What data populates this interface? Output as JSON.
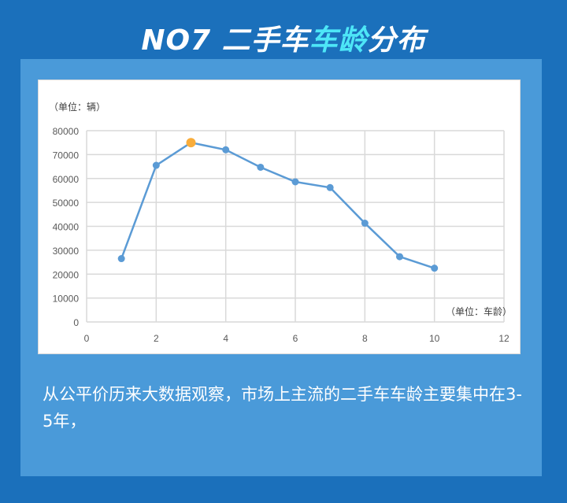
{
  "header": {
    "title_prefix": "NO7 二手车",
    "title_highlight": "车龄",
    "title_suffix": "分布"
  },
  "chart_data": {
    "type": "line",
    "ylabel": "（单位：辆）",
    "xlabel": "（单位：车龄）",
    "x": [
      1,
      2,
      3,
      4,
      5,
      6,
      7,
      8,
      9,
      10
    ],
    "values": [
      26500,
      65500,
      75000,
      72000,
      64700,
      58600,
      56200,
      41300,
      27300,
      22500
    ],
    "highlight_index": 2,
    "xlim": [
      0,
      12
    ],
    "ylim": [
      0,
      80000
    ],
    "xticks": [
      0,
      2,
      4,
      6,
      8,
      10,
      12
    ],
    "yticks": [
      0,
      10000,
      20000,
      30000,
      40000,
      50000,
      60000,
      70000,
      80000
    ],
    "grid": true,
    "colors": {
      "line": "#5b9bd5",
      "highlight": "#f9ad3b"
    }
  },
  "caption": "从公平价历来大数据观察，市场上主流的二手车车龄主要集中在3-5年，"
}
